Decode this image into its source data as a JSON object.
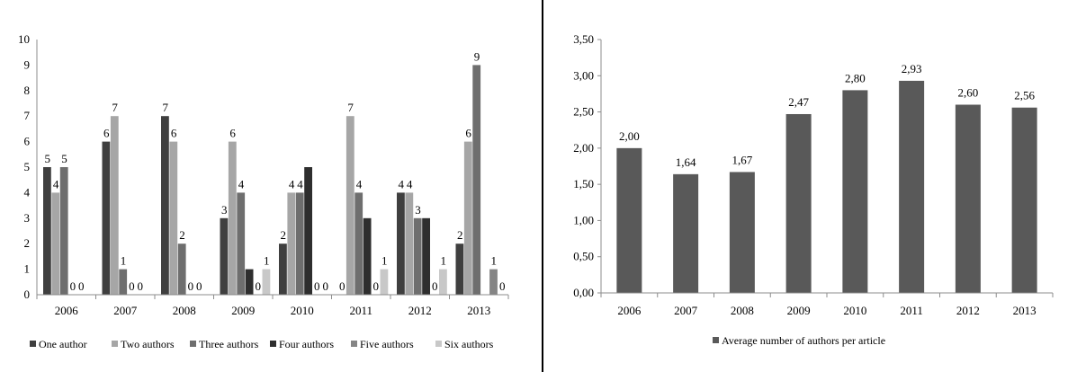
{
  "chart_data": [
    {
      "type": "bar",
      "categories": [
        "2006",
        "2007",
        "2008",
        "2009",
        "2010",
        "2011",
        "2012",
        "2013"
      ],
      "series": [
        {
          "name": "One author",
          "color": "#3f3f3f",
          "values": [
            5,
            6,
            7,
            3,
            2,
            0,
            4,
            2
          ],
          "labels": [
            "5",
            "6",
            "7",
            "3",
            "2",
            "0",
            "4",
            "2"
          ]
        },
        {
          "name": "Two authors",
          "color": "#a6a6a6",
          "values": [
            4,
            7,
            6,
            6,
            4,
            7,
            4,
            6
          ],
          "labels": [
            "4",
            "7",
            "6",
            "6",
            "4",
            "7",
            "4",
            "6"
          ]
        },
        {
          "name": "Three authors",
          "color": "#6e6e6e",
          "values": [
            5,
            1,
            2,
            4,
            4,
            4,
            3,
            9
          ],
          "labels": [
            "5",
            "1",
            "2",
            "4",
            "4",
            "4",
            "3",
            "9"
          ]
        },
        {
          "name": "Four authors",
          "color": "#2e2e2e",
          "values": [
            0,
            0,
            0,
            1,
            5,
            3,
            3,
            0
          ],
          "labels": [
            "0",
            "0",
            "0",
            "",
            "",
            "",
            "",
            ""
          ]
        },
        {
          "name": "Five authors",
          "color": "#858585",
          "values": [
            0,
            0,
            0,
            0,
            0,
            0,
            0,
            1
          ],
          "labels": [
            "0",
            "0",
            "0",
            "0",
            "0",
            "0",
            "0",
            "1"
          ]
        },
        {
          "name": "Six authors",
          "color": "#c8c8c8",
          "values": [
            0,
            0,
            0,
            1,
            0,
            1,
            1,
            0
          ],
          "labels": [
            "",
            "",
            "",
            "1",
            "0",
            "1",
            "1",
            "0"
          ]
        }
      ],
      "yticks": [
        "0",
        "1",
        "2",
        "3",
        "4",
        "5",
        "6",
        "7",
        "8",
        "9",
        "10"
      ],
      "ylim": [
        0,
        10
      ],
      "legend": "bottom"
    },
    {
      "type": "bar",
      "categories": [
        "2006",
        "2007",
        "2008",
        "2009",
        "2010",
        "2011",
        "2012",
        "2013"
      ],
      "series": [
        {
          "name": "Average number of authors per article",
          "color": "#595959",
          "values": [
            2.0,
            1.64,
            1.67,
            2.47,
            2.8,
            2.93,
            2.6,
            2.56
          ],
          "labels": [
            "2,00",
            "1,64",
            "1,67",
            "2,47",
            "2,80",
            "2,93",
            "2,60",
            "2,56"
          ]
        }
      ],
      "yticks": [
        "0,00",
        "0,50",
        "1,00",
        "1,50",
        "2,00",
        "2,50",
        "3,00",
        "3,50"
      ],
      "ylim": [
        0,
        3.5
      ],
      "legend": "bottom"
    }
  ]
}
